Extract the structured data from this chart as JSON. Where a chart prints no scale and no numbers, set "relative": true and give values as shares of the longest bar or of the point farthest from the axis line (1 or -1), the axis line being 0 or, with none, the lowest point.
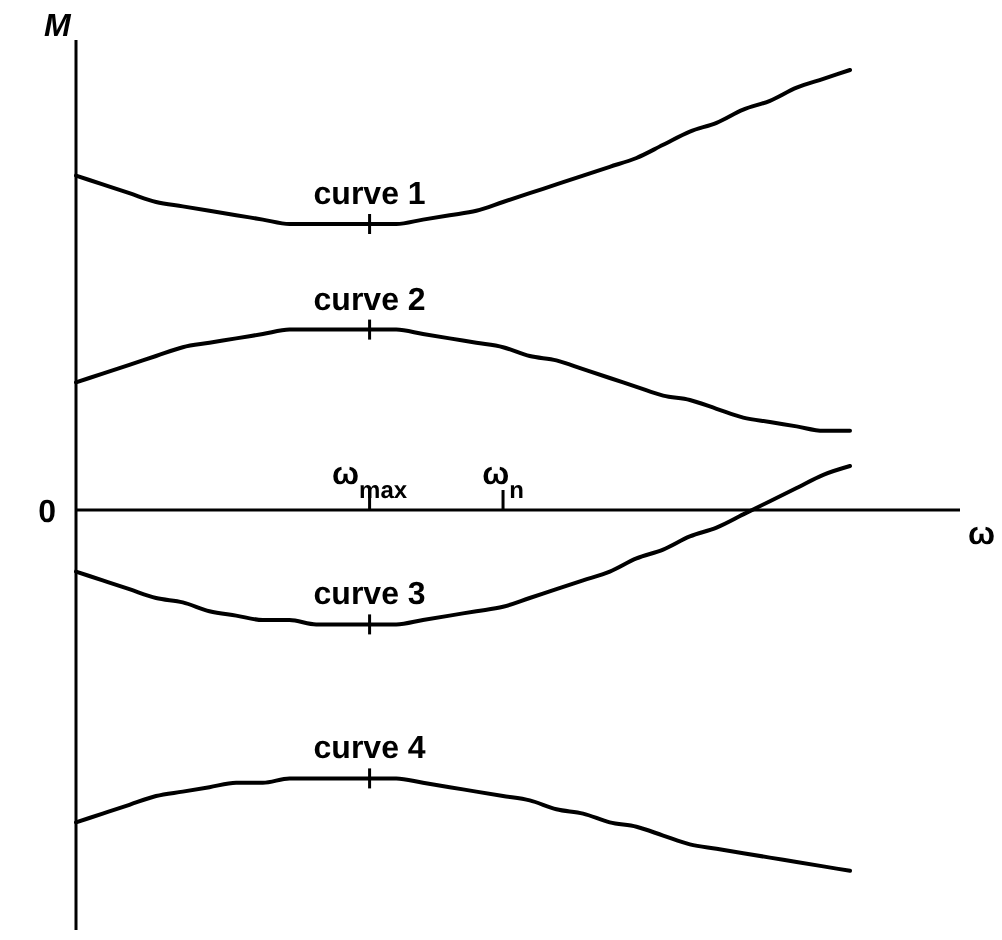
{
  "chart_data": {
    "type": "line",
    "relative": true,
    "ylabel": "M",
    "xlabel": "ω",
    "annotations": [
      "0"
    ],
    "categories": [
      null,
      null,
      null,
      null,
      null,
      null,
      null,
      null,
      null,
      null,
      null,
      "ω$_{max}$",
      null,
      null,
      null,
      null,
      "ω$_{n}$",
      null,
      null,
      null,
      null,
      null,
      null,
      null,
      null,
      null,
      null,
      null,
      null,
      null
    ],
    "series": [
      {
        "name": "curve 1",
        "color": "#000000",
        "values": [
          0.76,
          0.74,
          0.72,
          0.7,
          0.69,
          0.68,
          0.67,
          0.66,
          0.65,
          0.65,
          0.65,
          0.65,
          0.65,
          0.66,
          0.67,
          0.68,
          0.7,
          0.72,
          0.74,
          0.76,
          0.78,
          0.8,
          0.83,
          0.86,
          0.88,
          0.91,
          0.93,
          0.96,
          0.98,
          1
        ]
      },
      {
        "name": "curve 2",
        "color": "#000000",
        "values": [
          0.29,
          0.31,
          0.33,
          0.35,
          0.37,
          0.38,
          0.39,
          0.4,
          0.41,
          0.41,
          0.41,
          0.41,
          0.41,
          0.4,
          0.39,
          0.38,
          0.37,
          0.35,
          0.34,
          0.32,
          0.3,
          0.28,
          0.26,
          0.25,
          0.23,
          0.21,
          0.2,
          0.19,
          0.18,
          0.18
        ]
      },
      {
        "name": "curve 3",
        "color": "#000000",
        "values": [
          -0.14,
          -0.16,
          -0.18,
          -0.2,
          -0.21,
          -0.23,
          -0.24,
          -0.25,
          -0.25,
          -0.26,
          -0.26,
          -0.26,
          -0.26,
          -0.25,
          -0.24,
          -0.23,
          -0.22,
          -0.2,
          -0.18,
          -0.16,
          -0.14,
          -0.11,
          -0.09,
          -0.06,
          -0.04,
          -0.01,
          0.02,
          0.05,
          0.08,
          0.1
        ]
      },
      {
        "name": "curve 4",
        "color": "#000000",
        "values": [
          -0.71,
          -0.69,
          -0.67,
          -0.65,
          -0.64,
          -0.63,
          -0.62,
          -0.62,
          -0.61,
          -0.61,
          -0.61,
          -0.61,
          -0.61,
          -0.62,
          -0.63,
          -0.64,
          -0.65,
          -0.66,
          -0.68,
          -0.69,
          -0.71,
          -0.72,
          -0.74,
          -0.76,
          -0.77,
          -0.78,
          -0.79,
          -0.8,
          -0.81,
          -0.82
        ]
      }
    ]
  }
}
